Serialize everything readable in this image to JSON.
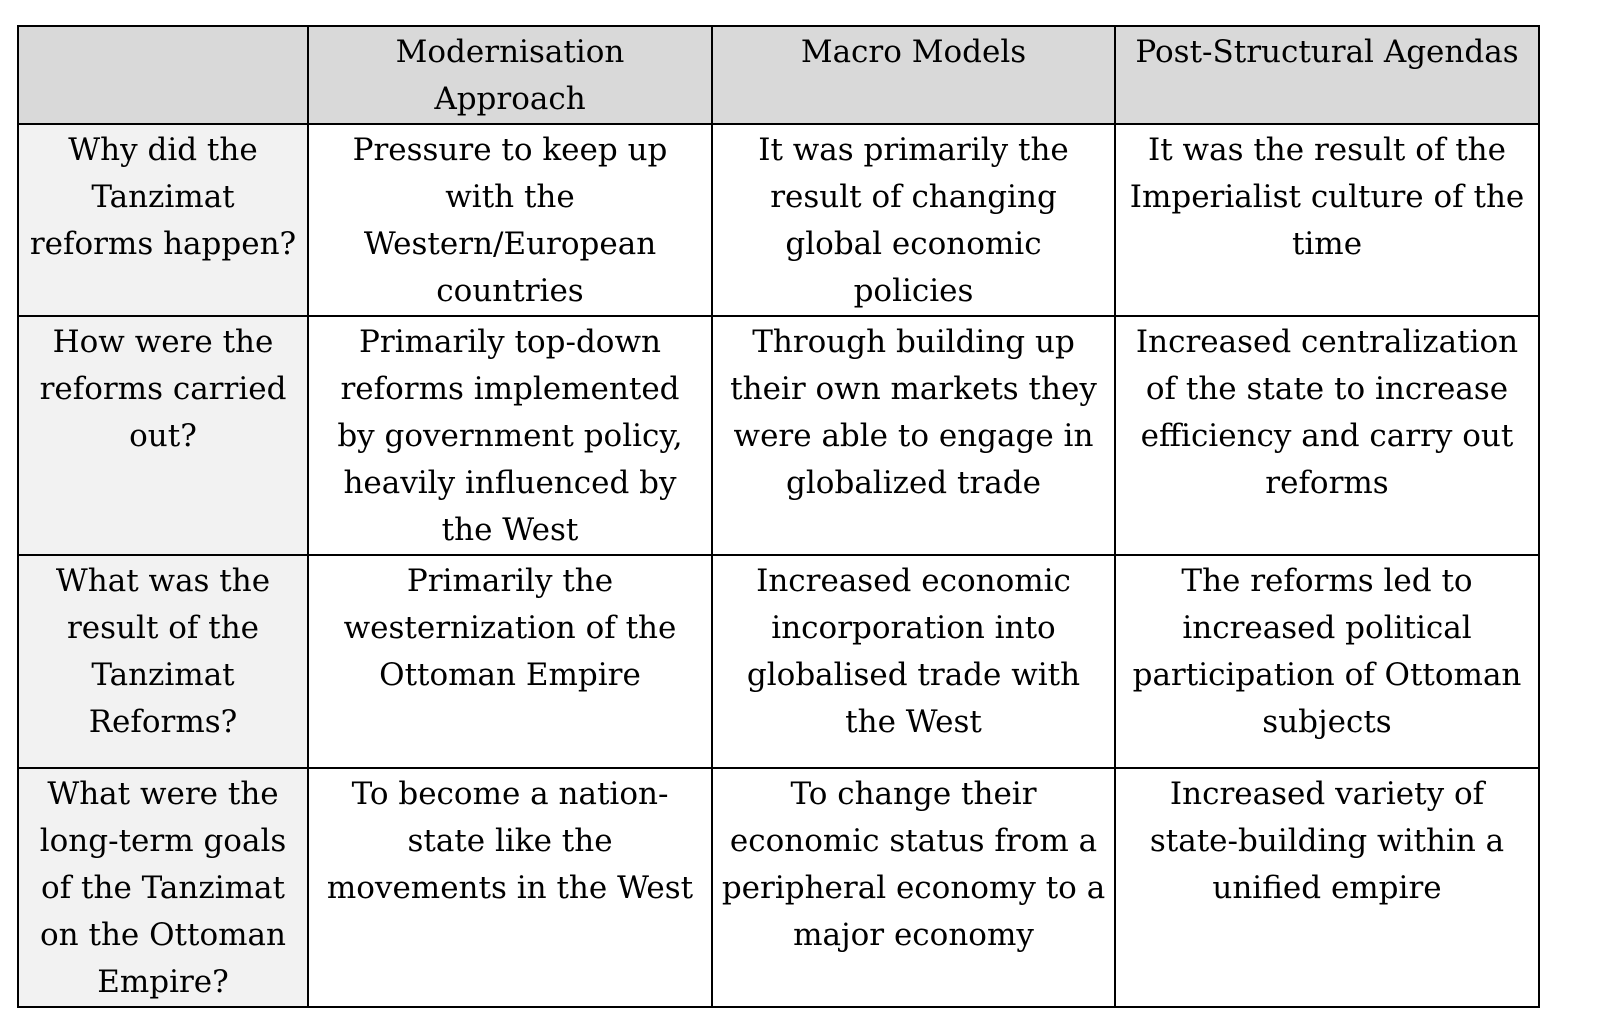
{
  "table": {
    "headers": [
      "",
      "Modernisation Approach",
      "Macro Models",
      "Post-Structural Agendas"
    ],
    "rows": [
      {
        "question": "Why did the Tanzimat reforms happen?",
        "cells": [
          "Pressure to keep up with the Western/European countries",
          "It was primarily the result of changing global economic policies",
          "It was the result of the Imperialist culture of the time"
        ]
      },
      {
        "question": "How were the reforms carried out?",
        "cells": [
          "Primarily top-down reforms implemented by government policy, heavily influenced by the West",
          "Through building up their own markets they were able to engage in globalized trade",
          "Increased centralization of the state to increase efficiency and carry out reforms"
        ]
      },
      {
        "question": "What was the result of the Tanzimat Reforms?",
        "cells": [
          "Primarily the westernization of the Ottoman Empire",
          "Increased economic incorporation into globalised trade with the West",
          "The reforms led to increased political participation of Ottoman subjects"
        ]
      },
      {
        "question": "What were the long-term goals of the Tanzimat on the Ottoman Empire?",
        "cells": [
          "To become a nation-state like the movements in the West",
          "To change their economic status from a peripheral economy to a major economy",
          "Increased variety of state-building within a unified empire"
        ]
      }
    ]
  }
}
